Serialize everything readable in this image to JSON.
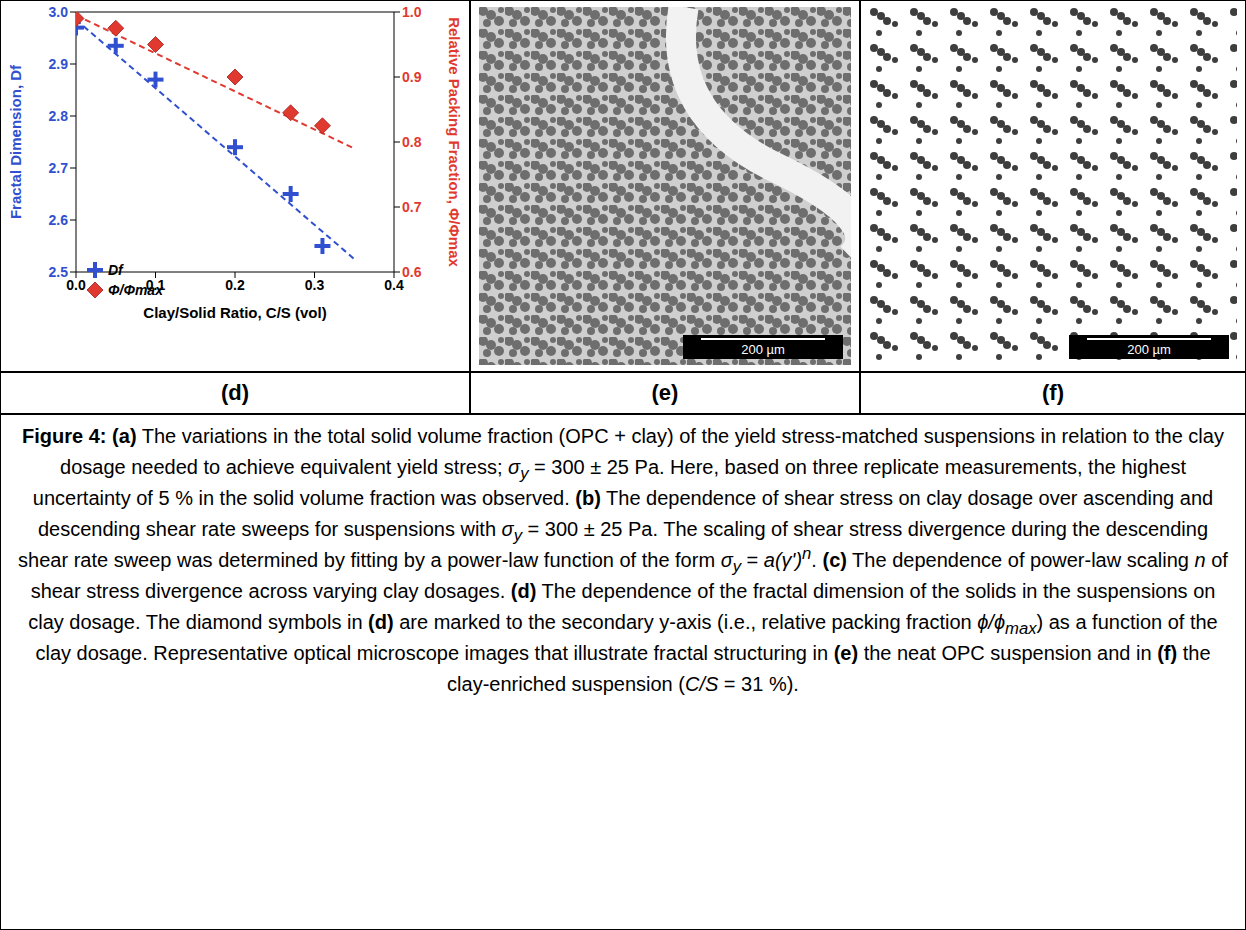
{
  "chart_data": {
    "type": "scatter",
    "panel": "(d)",
    "x_label": "Clay/Solid Ratio, C/S (vol)",
    "y_label": "Fractal Dimension, Df",
    "y2_label": "Relative Packing Fraction, Φ/Φmax",
    "xlim": [
      0,
      0.4
    ],
    "xticks": [
      {
        "value": 0,
        "label": "0.0"
      },
      0.1,
      0.2,
      0.3,
      0.4
    ],
    "ylim": [
      2.5,
      3.0
    ],
    "yticks": [
      2.5,
      2.6,
      2.7,
      2.8,
      2.9,
      {
        "value": 3,
        "label": "3.0"
      }
    ],
    "y2lim": [
      0.6,
      1.0
    ],
    "y2ticks": [
      0.6,
      0.7,
      0.8,
      0.9,
      {
        "value": 1,
        "label": "1.0"
      }
    ],
    "x": [
      0,
      0.05,
      0.1,
      0.2,
      0.27,
      0.31
    ],
    "series": [
      {
        "name": "Df",
        "color": "#3050d0",
        "marker": "plus",
        "values": [
          2.97,
          2.935,
          2.87,
          2.74,
          2.65,
          2.55
        ]
      },
      {
        "name": "Φ/Φmax",
        "color": "#e03a30",
        "marker": "diamond",
        "axis": "y2",
        "values": [
          0.99,
          0.975,
          0.95,
          0.9,
          0.845,
          0.825
        ]
      }
    ],
    "trendlines": [
      {
        "axis": "y",
        "color": "#3050d0",
        "line_style": "dashed",
        "x": [
          0,
          0.35
        ],
        "values": [
          2.985,
          2.525
        ]
      },
      {
        "axis": "y2",
        "color": "#e03a30",
        "line_style": "dashed",
        "x": [
          0,
          0.35
        ],
        "values": [
          0.995,
          0.79
        ]
      }
    ],
    "legend": "lower left"
  },
  "images": [
    {
      "panel": "(e)",
      "scale_bar": "200 µm"
    },
    {
      "panel": "(f)",
      "scale_bar": "200 µm"
    }
  ],
  "caption": [
    {
      "text": "Figure 4:",
      "style": "bold"
    },
    {
      "text": " "
    },
    {
      "text": "(a)",
      "style": "bold"
    },
    {
      "text": " The variations in the total solid volume fraction (OPC + clay) of the yield stress-matched suspensions in relation to the clay dosage needed to achieve equivalent yield stress; "
    },
    {
      "text": "σ",
      "style": "italic"
    },
    {
      "text": "y",
      "style": "sub"
    },
    {
      "text": " = 300 ± 25 Pa. Here, based on three replicate measurements, the highest uncertainty of 5 % in the solid volume fraction was observed. "
    },
    {
      "text": "(b)",
      "style": "bold"
    },
    {
      "text": " The dependence of shear stress on clay dosage over ascending and descending shear rate sweeps for suspensions with "
    },
    {
      "text": "σ",
      "style": "italic"
    },
    {
      "text": "y",
      "style": "sub"
    },
    {
      "text": " = 300 ± 25 Pa. The scaling of shear stress divergence during the descending shear rate sweep was determined by fitting by a power-law function of the form "
    },
    {
      "text": "σ",
      "style": "italic"
    },
    {
      "text": "y",
      "style": "sub"
    },
    {
      "text": " = "
    },
    {
      "text": "a(γ')",
      "style": "italic"
    },
    {
      "text": "n",
      "style": "sup"
    },
    {
      "text": ". "
    },
    {
      "text": "(c)",
      "style": "bold"
    },
    {
      "text": " The dependence of power-law scaling "
    },
    {
      "text": "n",
      "style": "italic"
    },
    {
      "text": " of shear stress divergence across varying clay dosages. "
    },
    {
      "text": "(d)",
      "style": "bold"
    },
    {
      "text": " The dependence of the fractal dimension of the solids in the suspensions on clay dosage. The diamond symbols in "
    },
    {
      "text": "(d)",
      "style": "bold"
    },
    {
      "text": " are marked to the secondary y-axis (i.e., relative packing fraction "
    },
    {
      "text": "ϕ/ϕ",
      "style": "italic"
    },
    {
      "text": "max",
      "style": "sub"
    },
    {
      "text": ") as a function of the clay dosage. Representative optical microscope images that illustrate fractal structuring in "
    },
    {
      "text": "(e)",
      "style": "bold"
    },
    {
      "text": " the neat OPC suspension and in "
    },
    {
      "text": "(f)",
      "style": "bold"
    },
    {
      "text": " the clay-enriched suspension ("
    },
    {
      "text": "C/S",
      "style": "italic"
    },
    {
      "text": " = 31 %)."
    }
  ]
}
